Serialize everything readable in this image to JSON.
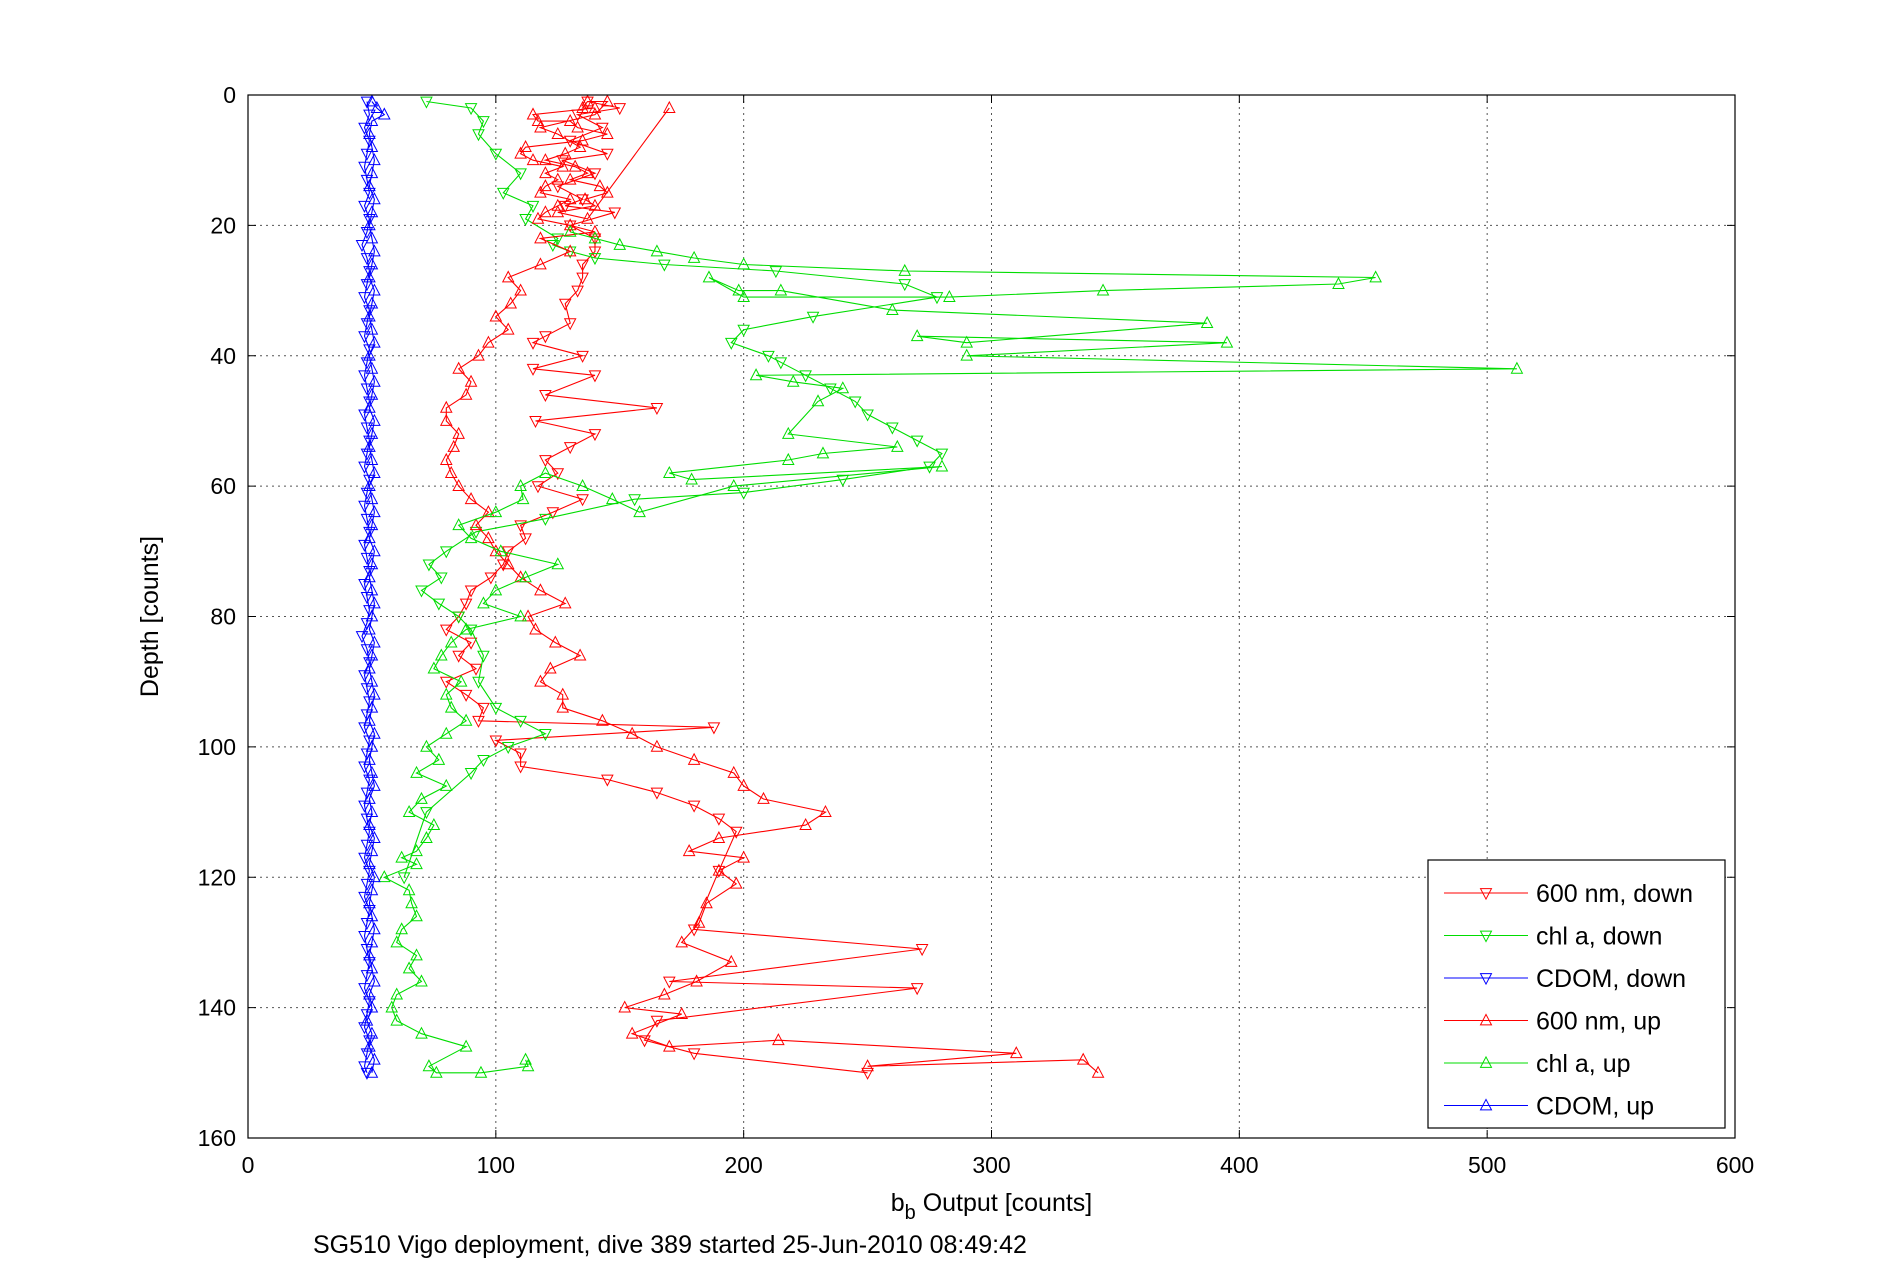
{
  "chart_data": {
    "type": "line",
    "title": "",
    "footer": "SG510 Vigo deployment, dive 389 started 25-Jun-2010 08:49:42",
    "xlabel_main": "b",
    "xlabel_sub": "b",
    "xlabel_rest": " Output [counts]",
    "ylabel": "Depth [counts]",
    "xlim": [
      0,
      600
    ],
    "ylim": [
      0,
      160
    ],
    "y_reversed": true,
    "grid": true,
    "xticks": [
      0,
      100,
      200,
      300,
      400,
      500,
      600
    ],
    "yticks": [
      0,
      20,
      40,
      60,
      80,
      100,
      120,
      140,
      160
    ],
    "legend_position": "bottom-right",
    "series": [
      {
        "name": "600 nm, down",
        "color": "#ff0000",
        "marker": "triangle-down",
        "x": [
          137,
          150,
          133,
          143,
          130,
          145,
          127,
          140,
          125,
          135,
          128,
          148,
          130,
          140,
          140,
          135,
          135,
          133,
          128,
          130,
          120,
          115,
          135,
          115,
          140,
          120,
          165,
          116,
          140,
          130,
          120,
          125,
          117,
          135,
          123,
          110,
          112,
          105,
          103,
          98,
          90,
          88,
          85,
          80,
          90,
          85,
          92,
          80,
          88,
          95,
          93,
          188,
          100,
          110,
          110,
          145,
          165,
          180,
          190,
          197,
          190,
          180,
          272,
          170,
          270,
          165,
          160,
          180,
          250
        ],
        "y": [
          1,
          2,
          3,
          5,
          7,
          9,
          10,
          12,
          14,
          16,
          17,
          18,
          20,
          22,
          24,
          26,
          28,
          30,
          32,
          35,
          37,
          38,
          40,
          42,
          43,
          46,
          48,
          50,
          52,
          54,
          56,
          58,
          60,
          62,
          64,
          66,
          68,
          70,
          72,
          74,
          76,
          78,
          80,
          82,
          84,
          86,
          88,
          90,
          92,
          94,
          96,
          97,
          99,
          101,
          103,
          105,
          107,
          109,
          111,
          113,
          119,
          128,
          131,
          136,
          137,
          142,
          145,
          147,
          150
        ]
      },
      {
        "name": "chl a, down",
        "color": "#00dd00",
        "marker": "triangle-down",
        "x": [
          72,
          90,
          95,
          93,
          100,
          110,
          103,
          115,
          112,
          125,
          123,
          130,
          140,
          168,
          213,
          265,
          278,
          228,
          200,
          195,
          210,
          215,
          225,
          235,
          245,
          250,
          260,
          270,
          280,
          275,
          240,
          200,
          156,
          120,
          92,
          80,
          73,
          78,
          70,
          77,
          85,
          90,
          95,
          93,
          100,
          110,
          120,
          105,
          95,
          90,
          72,
          63
        ],
        "y": [
          1,
          2,
          4,
          6,
          9,
          12,
          15,
          17,
          19,
          22,
          23,
          24,
          25,
          26,
          27,
          29,
          31,
          34,
          36,
          38,
          40,
          41,
          43,
          45,
          47,
          49,
          51,
          53,
          55,
          57,
          59,
          61,
          62,
          65,
          67,
          70,
          72,
          74,
          76,
          78,
          80,
          82,
          86,
          90,
          94,
          96,
          98,
          100,
          102,
          104,
          110,
          120
        ]
      },
      {
        "name": "CDOM, down",
        "color": "#0000ff",
        "marker": "triangle-down",
        "x": [
          48,
          49,
          47,
          49,
          48,
          47,
          48,
          49,
          47,
          49,
          48,
          46,
          48,
          49,
          48,
          47,
          49,
          48,
          47,
          49,
          48,
          47,
          48,
          49,
          47,
          48,
          49,
          48,
          47,
          49,
          48,
          47,
          48,
          49,
          47,
          48,
          49,
          47,
          48,
          49,
          48,
          46,
          48,
          49,
          47,
          48,
          49,
          48,
          47,
          49,
          48,
          47,
          49,
          48,
          47,
          48,
          49,
          48,
          47,
          49,
          48,
          47,
          49,
          48,
          47,
          48,
          49,
          48,
          47,
          49,
          48,
          47,
          49,
          48,
          47,
          48
        ],
        "y": [
          1,
          3,
          5,
          7,
          9,
          11,
          13,
          15,
          17,
          19,
          21,
          23,
          25,
          27,
          29,
          31,
          33,
          35,
          37,
          39,
          41,
          43,
          45,
          47,
          49,
          51,
          53,
          55,
          57,
          59,
          61,
          63,
          65,
          67,
          69,
          71,
          73,
          75,
          77,
          79,
          81,
          83,
          85,
          87,
          89,
          91,
          93,
          95,
          97,
          99,
          101,
          103,
          105,
          107,
          109,
          111,
          113,
          115,
          117,
          119,
          121,
          123,
          125,
          127,
          129,
          131,
          133,
          135,
          137,
          139,
          141,
          143,
          145,
          147,
          149,
          150
        ]
      },
      {
        "name": "600 nm, up",
        "color": "#ff0000",
        "marker": "triangle-up",
        "x": [
          343,
          337,
          250,
          310,
          214,
          170,
          155,
          175,
          152,
          168,
          181,
          195,
          175,
          182,
          185,
          197,
          190,
          200,
          178,
          190,
          225,
          233,
          208,
          200,
          196,
          180,
          165,
          155,
          143,
          127,
          127,
          118,
          122,
          134,
          124,
          116,
          113,
          128,
          118,
          110,
          105,
          100,
          97,
          92,
          97,
          90,
          85,
          82,
          80,
          83,
          85,
          80,
          80,
          88,
          90,
          85,
          93,
          97,
          105,
          100,
          106,
          110,
          105,
          118,
          130,
          118,
          140,
          130,
          117,
          120,
          125,
          130,
          118,
          120,
          125,
          120,
          127,
          115,
          110,
          112,
          135,
          145,
          133,
          130,
          117,
          115,
          140,
          135,
          137,
          145,
          140,
          118,
          125,
          134,
          128,
          120,
          132,
          137,
          130,
          142,
          145,
          136,
          140,
          125,
          137,
          170
        ],
        "y": [
          150,
          148,
          149,
          147,
          145,
          146,
          144,
          141,
          140,
          138,
          136,
          133,
          130,
          127,
          124,
          121,
          119,
          117,
          116,
          114,
          112,
          110,
          108,
          106,
          104,
          102,
          100,
          98,
          96,
          94,
          92,
          90,
          88,
          86,
          84,
          82,
          80,
          78,
          76,
          74,
          72,
          70,
          68,
          66,
          64,
          62,
          60,
          58,
          56,
          54,
          52,
          50,
          48,
          46,
          44,
          42,
          40,
          38,
          36,
          34,
          32,
          30,
          28,
          26,
          24,
          22,
          21,
          20,
          19,
          18,
          17,
          16,
          15,
          14,
          13,
          12,
          11,
          10,
          9,
          8,
          7,
          6,
          5,
          4,
          4,
          3,
          2,
          2,
          1,
          1,
          3,
          5,
          6,
          8,
          9,
          10,
          11,
          12,
          13,
          14,
          15,
          16,
          17,
          18,
          19,
          2
        ]
      },
      {
        "name": "chl a, up",
        "color": "#00dd00",
        "marker": "triangle-up",
        "x": [
          112,
          113,
          94,
          76,
          73,
          88,
          70,
          60,
          58,
          60,
          70,
          65,
          68,
          60,
          62,
          68,
          66,
          65,
          55,
          68,
          62,
          68,
          72,
          75,
          65,
          70,
          80,
          68,
          77,
          72,
          80,
          88,
          82,
          80,
          86,
          75,
          78,
          82,
          88,
          110,
          95,
          100,
          112,
          125,
          102,
          90,
          85,
          100,
          111,
          110,
          120,
          135,
          147,
          158,
          196,
          280,
          179,
          170,
          218,
          232,
          262,
          218,
          230,
          240,
          220,
          205,
          512,
          290,
          395,
          270,
          290,
          387,
          260,
          215,
          198,
          186,
          200,
          283,
          345,
          440,
          455,
          265,
          200,
          180,
          165,
          150,
          140,
          130
        ],
        "y": [
          148,
          149,
          150,
          150,
          149,
          146,
          144,
          142,
          140,
          138,
          136,
          134,
          132,
          130,
          128,
          126,
          124,
          122,
          120,
          118,
          117,
          116,
          114,
          112,
          110,
          108,
          106,
          104,
          102,
          100,
          98,
          96,
          94,
          92,
          90,
          88,
          86,
          84,
          82,
          80,
          78,
          76,
          74,
          72,
          70,
          68,
          66,
          64,
          62,
          60,
          58,
          60,
          62,
          64,
          60,
          57,
          59,
          58,
          56,
          55,
          54,
          52,
          47,
          45,
          44,
          43,
          42,
          40,
          38,
          37,
          38,
          35,
          33,
          30,
          30,
          28,
          31,
          31,
          30,
          29,
          28,
          27,
          26,
          25,
          24,
          23,
          22,
          21
        ]
      },
      {
        "name": "CDOM, up",
        "color": "#0000ff",
        "marker": "triangle-up",
        "x": [
          50,
          51,
          49,
          50,
          48,
          50,
          49,
          51,
          50,
          49,
          50,
          51,
          50,
          49,
          50,
          51,
          49,
          50,
          51,
          49,
          50,
          49,
          51,
          50,
          49,
          50,
          51,
          49,
          50,
          51,
          50,
          49,
          50,
          51,
          49,
          50,
          51,
          50,
          49,
          50,
          51,
          49,
          50,
          51,
          50,
          49,
          51,
          50,
          49,
          50,
          51,
          49,
          50,
          51,
          50,
          49,
          51,
          50,
          49,
          50,
          51,
          49,
          50,
          51,
          50,
          49,
          50,
          51,
          49,
          50,
          51,
          50,
          49,
          50,
          55,
          52,
          50
        ],
        "y": [
          150,
          148,
          146,
          144,
          142,
          140,
          138,
          136,
          134,
          132,
          130,
          128,
          126,
          124,
          122,
          120,
          118,
          116,
          114,
          112,
          110,
          108,
          106,
          104,
          102,
          100,
          98,
          96,
          94,
          92,
          90,
          88,
          86,
          84,
          82,
          80,
          78,
          76,
          74,
          72,
          70,
          68,
          66,
          64,
          62,
          60,
          58,
          56,
          54,
          52,
          50,
          48,
          46,
          44,
          42,
          40,
          38,
          36,
          34,
          32,
          30,
          28,
          26,
          24,
          22,
          20,
          18,
          16,
          14,
          12,
          10,
          8,
          6,
          4,
          3,
          2,
          1
        ]
      }
    ]
  }
}
